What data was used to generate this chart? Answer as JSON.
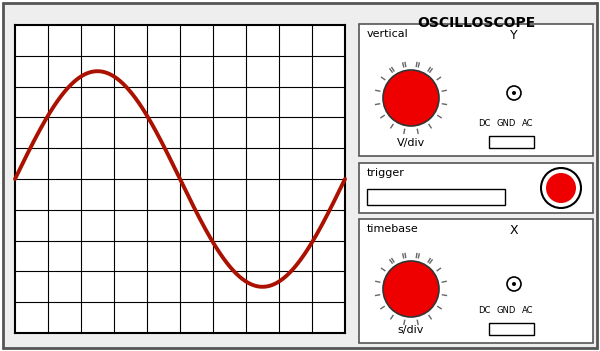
{
  "bg_color": "#ffffff",
  "outer_border_color": "#555555",
  "screen_bg": "#ffffff",
  "grid_color": "#000000",
  "sine_color": "#aa1100",
  "sine_linewidth": 2.8,
  "title": "OSCILLOSCOPE",
  "title_fontsize": 10,
  "knob_color_red": "#ee0000",
  "knob_border_color": "#333333",
  "knob_tick_color": "#666666",
  "label_vertical": "vertical",
  "label_vdiv": "V/div",
  "label_trigger": "trigger",
  "label_timebase": "timebase",
  "label_sdiv": "s/div",
  "label_Y": "Y",
  "label_X": "X",
  "label_dc": "DC",
  "label_gnd": "GND",
  "label_ac": "AC",
  "grid_divisions": 10,
  "amplitude_divs": 3.5,
  "panel_bg": "#ffffff",
  "box_border_color": "#555555"
}
